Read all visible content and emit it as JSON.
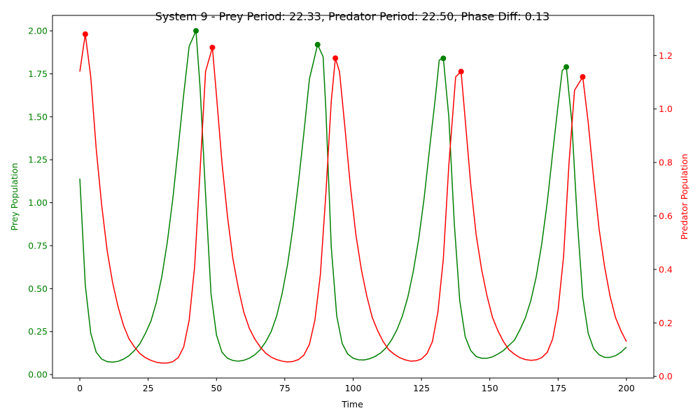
{
  "chart_data": {
    "type": "line",
    "title": "System 9 - Prey Period: 22.33, Predator Period: 22.50, Phase Diff: 0.13",
    "xlabel": "Time",
    "ylabel_left": "Prey Population",
    "ylabel_right": "Predator Population",
    "xlim": [
      -10,
      210
    ],
    "ylim_left": [
      -0.02,
      2.09
    ],
    "ylim_right": [
      -0.006,
      1.35
    ],
    "x_ticks": [
      "0",
      "25",
      "50",
      "75",
      "100",
      "125",
      "150",
      "175",
      "200"
    ],
    "y_left_ticks": [
      "0.00",
      "0.25",
      "0.50",
      "0.75",
      "1.00",
      "1.25",
      "1.50",
      "1.75",
      "2.00"
    ],
    "y_right_ticks": [
      "0.0",
      "0.2",
      "0.4",
      "0.6",
      "0.8",
      "1.0",
      "1.2"
    ],
    "colors": {
      "prey": "#008000",
      "predator": "#ff0000"
    },
    "grid": false,
    "series": [
      {
        "name": "Prey Population",
        "axis": "left",
        "color": "#008000",
        "points": [
          [
            0,
            1.14
          ],
          [
            2,
            0.52
          ],
          [
            4,
            0.24
          ],
          [
            6,
            0.13
          ],
          [
            8,
            0.09
          ],
          [
            10,
            0.075
          ],
          [
            12,
            0.072
          ],
          [
            14,
            0.077
          ],
          [
            16,
            0.09
          ],
          [
            18,
            0.11
          ],
          [
            20,
            0.14
          ],
          [
            22,
            0.18
          ],
          [
            24,
            0.24
          ],
          [
            26,
            0.31
          ],
          [
            28,
            0.42
          ],
          [
            30,
            0.57
          ],
          [
            32,
            0.77
          ],
          [
            34,
            1.02
          ],
          [
            36,
            1.32
          ],
          [
            38,
            1.63
          ],
          [
            40,
            1.91
          ],
          [
            42.5,
            2.0
          ],
          [
            44,
            1.67
          ],
          [
            46,
            1.05
          ],
          [
            48,
            0.47
          ],
          [
            50,
            0.23
          ],
          [
            52,
            0.13
          ],
          [
            54,
            0.095
          ],
          [
            56,
            0.082
          ],
          [
            58,
            0.078
          ],
          [
            60,
            0.083
          ],
          [
            62,
            0.095
          ],
          [
            64,
            0.115
          ],
          [
            66,
            0.145
          ],
          [
            68,
            0.19
          ],
          [
            70,
            0.25
          ],
          [
            72,
            0.34
          ],
          [
            74,
            0.47
          ],
          [
            76,
            0.64
          ],
          [
            78,
            0.86
          ],
          [
            80,
            1.12
          ],
          [
            82,
            1.41
          ],
          [
            84,
            1.72
          ],
          [
            87,
            1.92
          ],
          [
            89,
            1.85
          ],
          [
            90,
            1.55
          ],
          [
            92,
            0.74
          ],
          [
            94,
            0.34
          ],
          [
            96,
            0.18
          ],
          [
            98,
            0.12
          ],
          [
            100,
            0.095
          ],
          [
            102,
            0.086
          ],
          [
            104,
            0.085
          ],
          [
            106,
            0.092
          ],
          [
            108,
            0.105
          ],
          [
            110,
            0.125
          ],
          [
            112,
            0.155
          ],
          [
            114,
            0.2
          ],
          [
            116,
            0.26
          ],
          [
            118,
            0.34
          ],
          [
            120,
            0.45
          ],
          [
            122,
            0.6
          ],
          [
            124,
            0.79
          ],
          [
            126,
            1.03
          ],
          [
            128,
            1.32
          ],
          [
            130,
            1.6
          ],
          [
            131.5,
            1.83
          ],
          [
            133,
            1.84
          ],
          [
            135,
            1.5
          ],
          [
            137,
            0.88
          ],
          [
            139,
            0.43
          ],
          [
            141,
            0.22
          ],
          [
            143,
            0.14
          ],
          [
            145,
            0.105
          ],
          [
            147,
            0.095
          ],
          [
            149,
            0.095
          ],
          [
            151,
            0.103
          ],
          [
            153,
            0.12
          ],
          [
            155,
            0.14
          ],
          [
            157,
            0.17
          ],
          [
            159,
            0.2
          ],
          [
            161,
            0.26
          ],
          [
            163,
            0.33
          ],
          [
            165,
            0.43
          ],
          [
            167,
            0.57
          ],
          [
            169,
            0.76
          ],
          [
            171,
            1.0
          ],
          [
            173,
            1.29
          ],
          [
            175,
            1.57
          ],
          [
            176.5,
            1.77
          ],
          [
            178,
            1.79
          ],
          [
            180,
            1.47
          ],
          [
            182,
            0.9
          ],
          [
            184,
            0.45
          ],
          [
            186,
            0.24
          ],
          [
            188,
            0.15
          ],
          [
            190,
            0.115
          ],
          [
            192,
            0.1
          ],
          [
            194,
            0.1
          ],
          [
            196,
            0.11
          ],
          [
            198,
            0.13
          ],
          [
            200,
            0.16
          ]
        ],
        "peaks": [
          [
            42.5,
            2.0
          ],
          [
            87,
            1.92
          ],
          [
            133,
            1.84
          ],
          [
            178,
            1.79
          ]
        ]
      },
      {
        "name": "Predator Population",
        "axis": "right",
        "color": "#ff0000",
        "points": [
          [
            0,
            1.14
          ],
          [
            2,
            1.28
          ],
          [
            4,
            1.12
          ],
          [
            6,
            0.85
          ],
          [
            8,
            0.64
          ],
          [
            10,
            0.47
          ],
          [
            12,
            0.35
          ],
          [
            14,
            0.26
          ],
          [
            16,
            0.19
          ],
          [
            18,
            0.14
          ],
          [
            20,
            0.11
          ],
          [
            22,
            0.085
          ],
          [
            24,
            0.07
          ],
          [
            26,
            0.06
          ],
          [
            28,
            0.053
          ],
          [
            30,
            0.05
          ],
          [
            32,
            0.05
          ],
          [
            34,
            0.055
          ],
          [
            36,
            0.07
          ],
          [
            38,
            0.11
          ],
          [
            40,
            0.21
          ],
          [
            42,
            0.41
          ],
          [
            44,
            0.77
          ],
          [
            46,
            1.14
          ],
          [
            48.5,
            1.23
          ],
          [
            50,
            1.05
          ],
          [
            52,
            0.8
          ],
          [
            54,
            0.6
          ],
          [
            56,
            0.44
          ],
          [
            58,
            0.33
          ],
          [
            60,
            0.24
          ],
          [
            62,
            0.18
          ],
          [
            64,
            0.14
          ],
          [
            66,
            0.11
          ],
          [
            68,
            0.087
          ],
          [
            70,
            0.072
          ],
          [
            72,
            0.063
          ],
          [
            74,
            0.057
          ],
          [
            76,
            0.054
          ],
          [
            78,
            0.056
          ],
          [
            80,
            0.063
          ],
          [
            82,
            0.08
          ],
          [
            84,
            0.12
          ],
          [
            86,
            0.21
          ],
          [
            88,
            0.38
          ],
          [
            90,
            0.68
          ],
          [
            92,
            1.03
          ],
          [
            93.5,
            1.19
          ],
          [
            95,
            1.14
          ],
          [
            97,
            0.93
          ],
          [
            99,
            0.71
          ],
          [
            101,
            0.53
          ],
          [
            103,
            0.4
          ],
          [
            105,
            0.3
          ],
          [
            107,
            0.22
          ],
          [
            109,
            0.17
          ],
          [
            111,
            0.13
          ],
          [
            113,
            0.1
          ],
          [
            115,
            0.083
          ],
          [
            117,
            0.07
          ],
          [
            119,
            0.062
          ],
          [
            121,
            0.057
          ],
          [
            123,
            0.058
          ],
          [
            125,
            0.065
          ],
          [
            127,
            0.085
          ],
          [
            129,
            0.13
          ],
          [
            131,
            0.24
          ],
          [
            133,
            0.44
          ],
          [
            135,
            0.79
          ],
          [
            137.5,
            1.12
          ],
          [
            139.5,
            1.14
          ],
          [
            141,
            0.96
          ],
          [
            143,
            0.72
          ],
          [
            145,
            0.53
          ],
          [
            147,
            0.4
          ],
          [
            149,
            0.3
          ],
          [
            151,
            0.22
          ],
          [
            153,
            0.17
          ],
          [
            155,
            0.13
          ],
          [
            157,
            0.1
          ],
          [
            159,
            0.083
          ],
          [
            161,
            0.07
          ],
          [
            163,
            0.063
          ],
          [
            165,
            0.06
          ],
          [
            167,
            0.062
          ],
          [
            169,
            0.07
          ],
          [
            171,
            0.09
          ],
          [
            173,
            0.14
          ],
          [
            175,
            0.25
          ],
          [
            177,
            0.45
          ],
          [
            179,
            0.8
          ],
          [
            181,
            1.07
          ],
          [
            184,
            1.12
          ],
          [
            186,
            0.95
          ],
          [
            188,
            0.74
          ],
          [
            190,
            0.55
          ],
          [
            192,
            0.41
          ],
          [
            194,
            0.3
          ],
          [
            196,
            0.22
          ],
          [
            198,
            0.17
          ],
          [
            200,
            0.13
          ]
        ],
        "peaks": [
          [
            2,
            1.28
          ],
          [
            48.5,
            1.23
          ],
          [
            93.5,
            1.19
          ],
          [
            139.5,
            1.14
          ],
          [
            184,
            1.12
          ]
        ]
      }
    ]
  }
}
